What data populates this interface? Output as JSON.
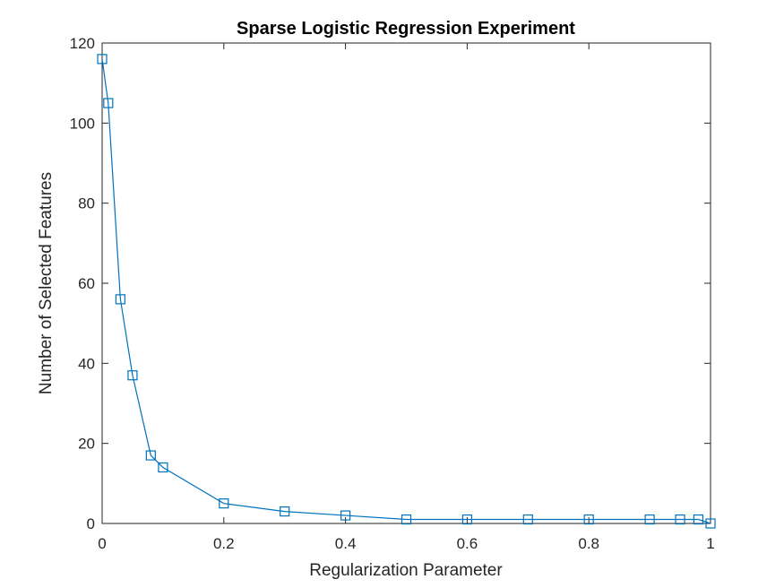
{
  "chart_data": {
    "type": "line",
    "title": "Sparse Logistic Regression Experiment",
    "xlabel": "Regularization Parameter",
    "ylabel": "Number of Selected Features",
    "xlim": [
      0,
      1
    ],
    "ylim": [
      0,
      120
    ],
    "x_ticks": [
      "0",
      "0.2",
      "0.4",
      "0.6",
      "0.8",
      "1"
    ],
    "y_ticks": [
      "0",
      "20",
      "40",
      "60",
      "80",
      "100",
      "120"
    ],
    "grid": false,
    "marker": "square",
    "color": "#0072BD",
    "series": [
      {
        "x": [
          0,
          0.01,
          0.03,
          0.05,
          0.08,
          0.1,
          0.2,
          0.3,
          0.4,
          0.5,
          0.6,
          0.7,
          0.8,
          0.9,
          0.95,
          0.98,
          1.0
        ],
        "values": [
          116,
          105,
          56,
          37,
          17,
          14,
          5,
          3,
          2,
          1,
          1,
          1,
          1,
          1,
          1,
          1,
          0
        ]
      }
    ]
  }
}
